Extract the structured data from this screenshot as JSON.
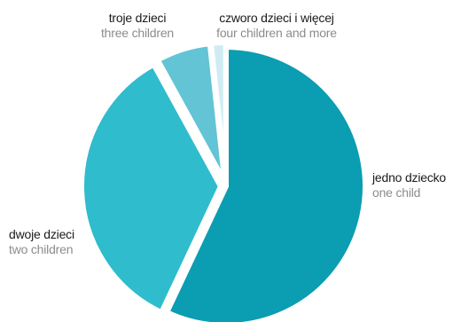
{
  "chart_data": {
    "type": "pie",
    "title": "",
    "slices": [
      {
        "label_pl": "jedno dziecko",
        "label_en": "one child",
        "value": 57.0,
        "color": "#0b9db1"
      },
      {
        "label_pl": "dwoje dzieci",
        "label_en": "two children",
        "value": 35.0,
        "color": "#2fbccc"
      },
      {
        "label_pl": "troje dzieci",
        "label_en": "three children",
        "value": 6.3,
        "color": "#62c4d5"
      },
      {
        "label_pl": "czworo dzieci i więcej",
        "label_en": "four children and more",
        "value": 1.7,
        "color": "#cfecf2"
      }
    ]
  }
}
